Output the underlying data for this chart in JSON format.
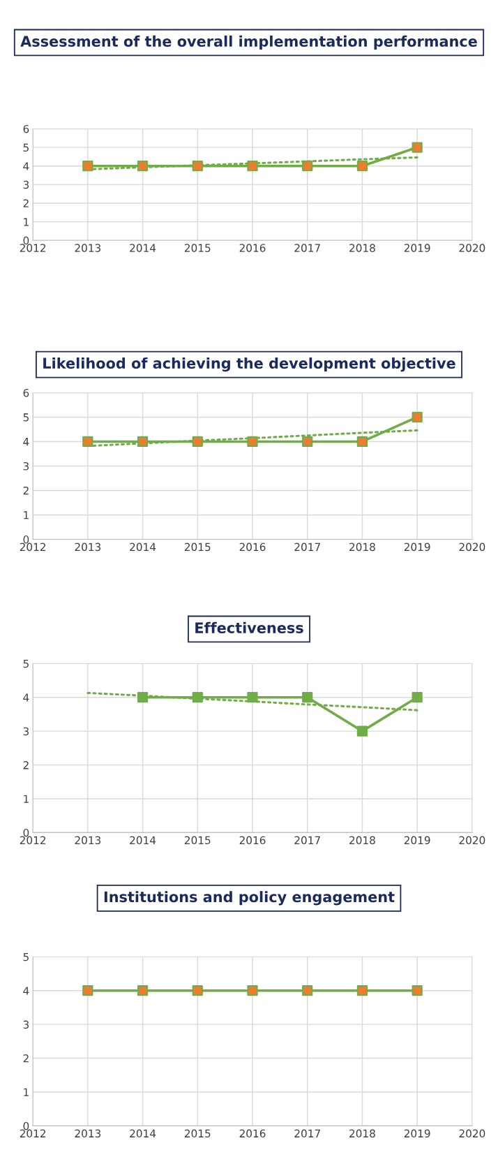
{
  "chart_data": [
    {
      "type": "line",
      "title": "Assessment of the overall implementation performance",
      "x": [
        2013,
        2014,
        2015,
        2016,
        2017,
        2018,
        2019
      ],
      "series": [
        {
          "color": "#70ad47",
          "colors": [
            "#ed7d31",
            "#ed7d31",
            "#ed7d31",
            "#ed7d31",
            "#ed7d31",
            "#ed7d31",
            "#ed7d31"
          ],
          "values": [
            4,
            4,
            4,
            4,
            4,
            4,
            5
          ],
          "marker": "square",
          "line_style": "solid"
        },
        {
          "type": "line",
          "color": "#70ad47",
          "values": [
            3.82,
            3.93,
            4.04,
            4.14,
            4.25,
            4.36,
            4.46
          ],
          "marker": "none",
          "line_style": "dotted"
        }
      ],
      "xlim": [
        2012,
        2020
      ],
      "xticks": [
        2012,
        2013,
        2014,
        2015,
        2016,
        2017,
        2018,
        2019,
        2020
      ],
      "ylim": [
        0,
        6
      ],
      "yticks": [
        0,
        1,
        2,
        3,
        4,
        5,
        6
      ],
      "grid": true,
      "legend": false
    },
    {
      "type": "line",
      "title": "Likelihood of achieving the development objective",
      "x": [
        2013,
        2014,
        2015,
        2016,
        2017,
        2018,
        2019
      ],
      "series": [
        {
          "color": "#70ad47",
          "colors": [
            "#ed7d31",
            "#ed7d31",
            "#ed7d31",
            "#ed7d31",
            "#ed7d31",
            "#ed7d31",
            "#ed7d31"
          ],
          "values": [
            4,
            4,
            4,
            4,
            4,
            4,
            5
          ],
          "marker": "square",
          "line_style": "solid"
        },
        {
          "type": "line",
          "color": "#70ad47",
          "values": [
            3.82,
            3.93,
            4.04,
            4.14,
            4.25,
            4.36,
            4.46
          ],
          "marker": "none",
          "line_style": "dotted"
        }
      ],
      "xlim": [
        2012,
        2020
      ],
      "xticks": [
        2012,
        2013,
        2014,
        2015,
        2016,
        2017,
        2018,
        2019,
        2020
      ],
      "ylim": [
        0,
        6
      ],
      "yticks": [
        0,
        1,
        2,
        3,
        4,
        5,
        6
      ],
      "grid": true,
      "legend": false
    },
    {
      "type": "line",
      "title": "Effectiveness",
      "x": [
        2013,
        2014,
        2015,
        2016,
        2017,
        2018,
        2019
      ],
      "series": [
        {
          "color": "#70ad47",
          "colors": [
            "#70ad47",
            "#70ad47",
            "#70ad47",
            "#70ad47",
            "#70ad47",
            "#70ad47",
            "#70ad47"
          ],
          "values": [
            null,
            4,
            4,
            4,
            4,
            3,
            4
          ],
          "marker": "square",
          "line_style": "solid"
        },
        {
          "type": "line",
          "color": "#70ad47",
          "values": [
            4.13,
            4.05,
            3.96,
            3.88,
            3.79,
            3.71,
            3.62
          ],
          "marker": "none",
          "line_style": "dotted"
        }
      ],
      "xlim": [
        2012,
        2020
      ],
      "xticks": [
        2012,
        2013,
        2014,
        2015,
        2016,
        2017,
        2018,
        2019,
        2020
      ],
      "ylim": [
        0,
        5
      ],
      "yticks": [
        0,
        1,
        2,
        3,
        4,
        5
      ],
      "grid": true,
      "legend": false
    },
    {
      "type": "line",
      "title": "Institutions and policy engagement",
      "x": [
        2013,
        2014,
        2015,
        2016,
        2017,
        2018,
        2019
      ],
      "series": [
        {
          "color": "#70ad47",
          "colors": [
            "#ed7d31",
            "#ed7d31",
            "#ed7d31",
            "#ed7d31",
            "#ed7d31",
            "#ed7d31",
            "#ed7d31"
          ],
          "values": [
            4,
            4,
            4,
            4,
            4,
            4,
            4
          ],
          "marker": "square",
          "line_style": "solid"
        }
      ],
      "xlim": [
        2012,
        2020
      ],
      "xticks": [
        2012,
        2013,
        2014,
        2015,
        2016,
        2017,
        2018,
        2019,
        2020
      ],
      "ylim": [
        0,
        5
      ],
      "yticks": [
        0,
        1,
        2,
        3,
        4,
        5
      ],
      "grid": true,
      "legend": false
    }
  ]
}
